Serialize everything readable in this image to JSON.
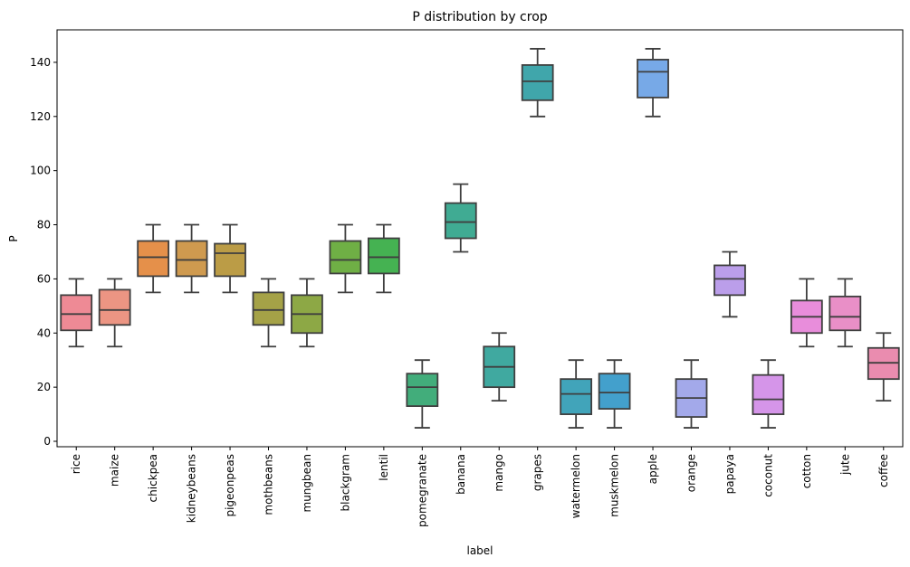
{
  "chart_data": {
    "type": "box",
    "title": "P distribution by crop",
    "xlabel": "label",
    "ylabel": "P",
    "ylim": [
      -2,
      152
    ],
    "yticks": [
      0,
      20,
      40,
      60,
      80,
      100,
      120,
      140
    ],
    "grid": false,
    "categories": [
      "rice",
      "maize",
      "chickpea",
      "kidneybeans",
      "pigeonpeas",
      "mothbeans",
      "mungbean",
      "blackgram",
      "lentil",
      "pomegranate",
      "banana",
      "mango",
      "grapes",
      "watermelon",
      "muskmelon",
      "apple",
      "orange",
      "papaya",
      "coconut",
      "cotton",
      "jute",
      "coffee"
    ],
    "boxes": [
      {
        "label": "rice",
        "min": 35,
        "q1": 41,
        "median": 47,
        "q3": 54,
        "max": 60,
        "color": "#ee8a95"
      },
      {
        "label": "maize",
        "min": 35,
        "q1": 43,
        "median": 48.5,
        "q3": 56,
        "max": 60,
        "color": "#ec9583"
      },
      {
        "label": "chickpea",
        "min": 55,
        "q1": 61,
        "median": 68,
        "q3": 74,
        "max": 80,
        "color": "#e5904a"
      },
      {
        "label": "kidneybeans",
        "min": 55,
        "q1": 61,
        "median": 67,
        "q3": 74,
        "max": 80,
        "color": "#cf9a4f"
      },
      {
        "label": "pigeonpeas",
        "min": 55,
        "q1": 61,
        "median": 69.5,
        "q3": 73,
        "max": 80,
        "color": "#bb9c46"
      },
      {
        "label": "mothbeans",
        "min": 35,
        "q1": 43,
        "median": 48.5,
        "q3": 55,
        "max": 60,
        "color": "#a5a247"
      },
      {
        "label": "mungbean",
        "min": 35,
        "q1": 40,
        "median": 47,
        "q3": 54,
        "max": 60,
        "color": "#8da845"
      },
      {
        "label": "blackgram",
        "min": 55,
        "q1": 62,
        "median": 67,
        "q3": 74,
        "max": 80,
        "color": "#6faf45"
      },
      {
        "label": "lentil",
        "min": 55,
        "q1": 62,
        "median": 68,
        "q3": 75,
        "max": 80,
        "color": "#45b252"
      },
      {
        "label": "pomegranate",
        "min": 5,
        "q1": 13,
        "median": 20,
        "q3": 25,
        "max": 30,
        "color": "#42ad7b"
      },
      {
        "label": "banana",
        "min": 70,
        "q1": 75,
        "median": 81,
        "q3": 88,
        "max": 95,
        "color": "#40ab93"
      },
      {
        "label": "mango",
        "min": 15,
        "q1": 20,
        "median": 27.5,
        "q3": 35,
        "max": 40,
        "color": "#40a9a0"
      },
      {
        "label": "grapes",
        "min": 120,
        "q1": 126,
        "median": 133,
        "q3": 139,
        "max": 145,
        "color": "#40a6ab"
      },
      {
        "label": "watermelon",
        "min": 5,
        "q1": 10,
        "median": 17.5,
        "q3": 23,
        "max": 30,
        "color": "#41a4ba"
      },
      {
        "label": "muskmelon",
        "min": 5,
        "q1": 12,
        "median": 18,
        "q3": 25,
        "max": 30,
        "color": "#43a0cc"
      },
      {
        "label": "apple",
        "min": 120,
        "q1": 127,
        "median": 136.5,
        "q3": 141,
        "max": 145,
        "color": "#77a9e7"
      },
      {
        "label": "orange",
        "min": 5,
        "q1": 9,
        "median": 16,
        "q3": 23,
        "max": 30,
        "color": "#a3a9ea"
      },
      {
        "label": "papaya",
        "min": 46,
        "q1": 54,
        "median": 60,
        "q3": 65,
        "max": 70,
        "color": "#bb9eea"
      },
      {
        "label": "coconut",
        "min": 5,
        "q1": 10,
        "median": 15.5,
        "q3": 24.5,
        "max": 30,
        "color": "#d595e9"
      },
      {
        "label": "cotton",
        "min": 35,
        "q1": 40,
        "median": 46,
        "q3": 52,
        "max": 60,
        "color": "#e88ddb"
      },
      {
        "label": "jute",
        "min": 35,
        "q1": 41,
        "median": 46,
        "q3": 53.5,
        "max": 60,
        "color": "#e98fc7"
      },
      {
        "label": "coffee",
        "min": 15,
        "q1": 23,
        "median": 29,
        "q3": 34.5,
        "max": 40,
        "color": "#ea8caf"
      }
    ]
  }
}
